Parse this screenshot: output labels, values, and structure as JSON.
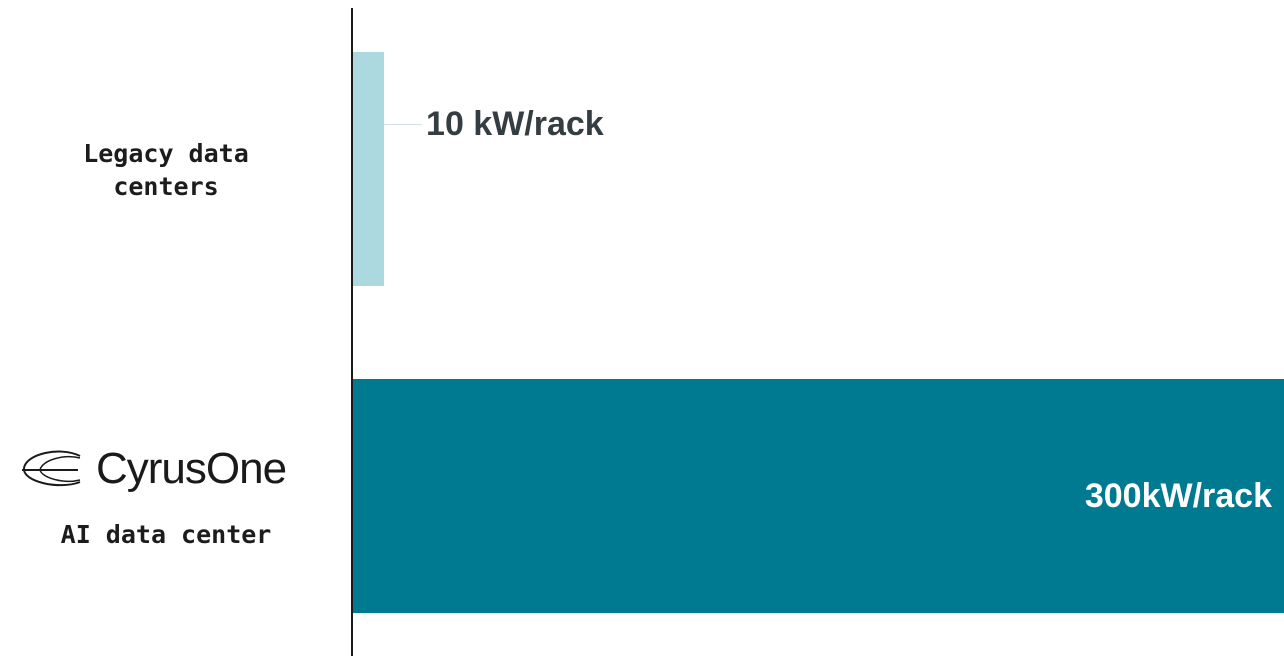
{
  "chart_data": {
    "type": "bar",
    "orientation": "horizontal",
    "categories": [
      "Legacy data centers",
      "AI data center"
    ],
    "values": [
      10,
      300
    ],
    "unit": "kW/rack",
    "data_labels": [
      "10 kW/rack",
      "300kW/rack"
    ],
    "xlim": [
      0,
      300
    ],
    "grid": false,
    "legend": "none",
    "title": "",
    "xlabel": "",
    "ylabel": ""
  },
  "labels": {
    "legacy_line1": "Legacy data",
    "legacy_line2": "centers",
    "ai": "AI data center"
  },
  "logo": {
    "text": "CyrusOne",
    "icon": "cyrusone-swoosh-icon"
  },
  "colors": {
    "legacy_bar": "#acd8e0",
    "ai_bar": "#007a91",
    "legacy_label": "#333d42",
    "ai_label": "#ffffff",
    "axis": "#1a1a1a"
  }
}
